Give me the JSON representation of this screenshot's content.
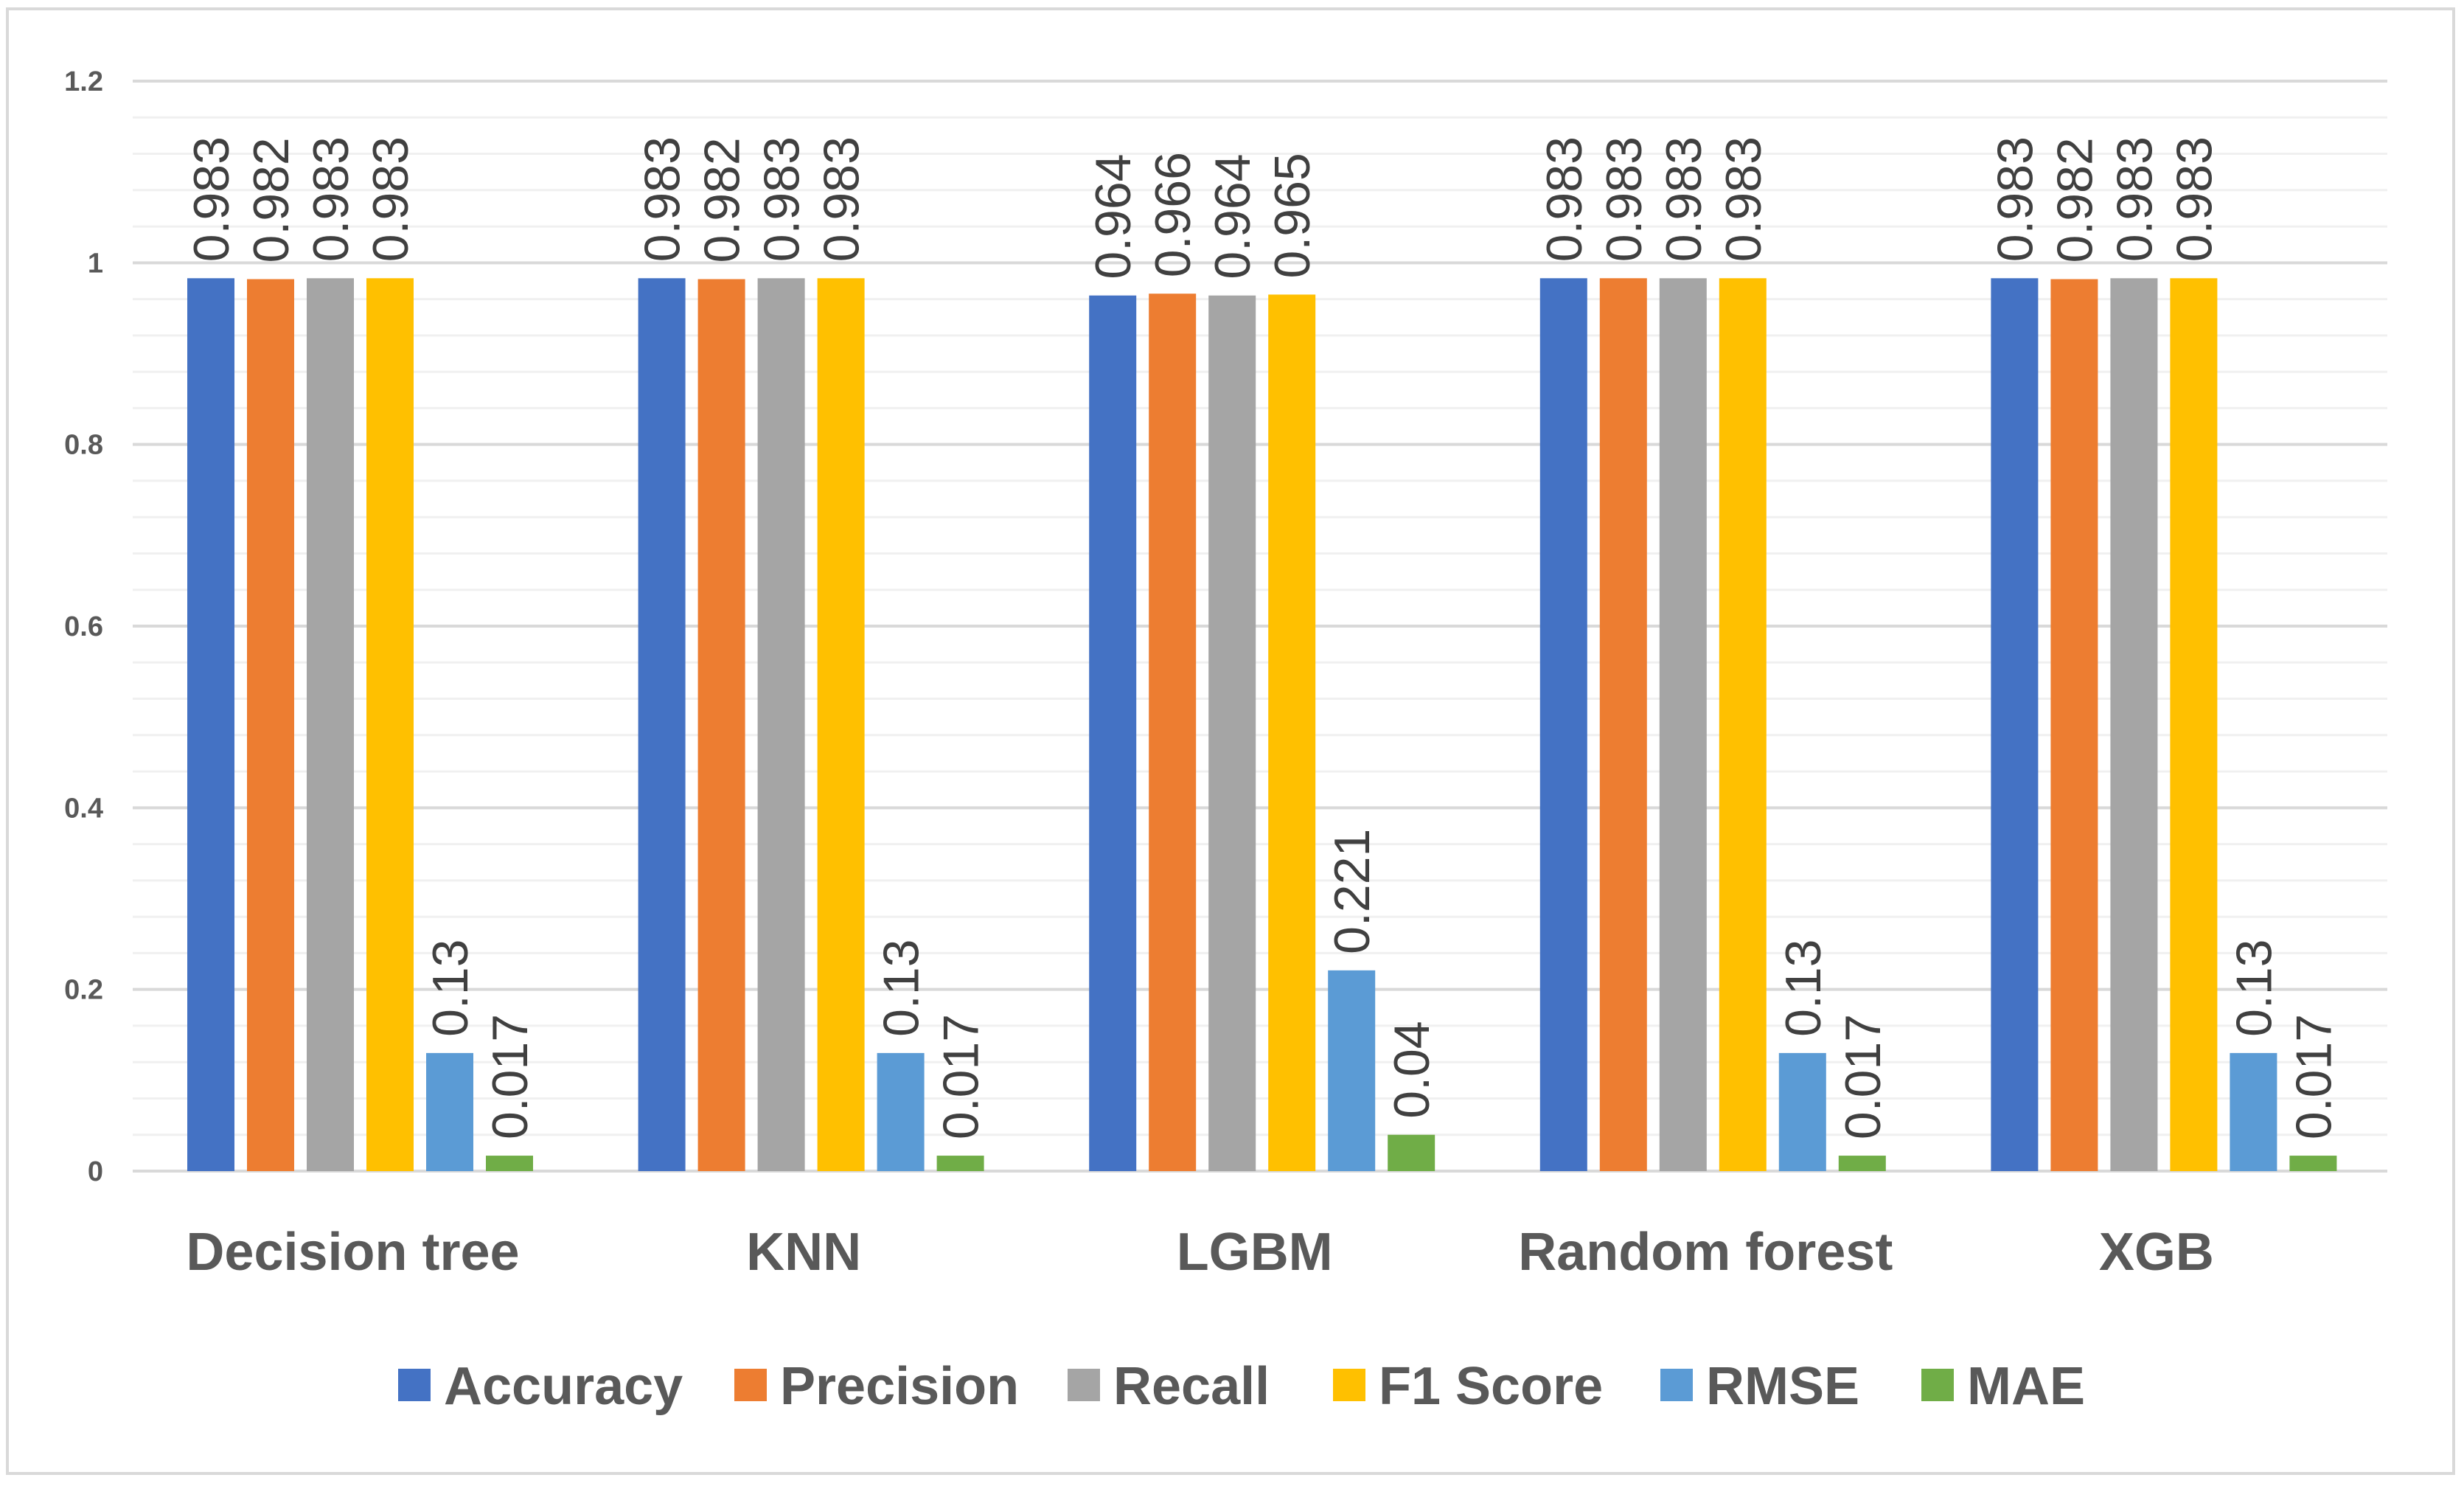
{
  "chart_data": {
    "type": "bar",
    "title": "",
    "xlabel": "",
    "ylabel": "",
    "ylim": [
      0,
      1.2
    ],
    "yticks": [
      0,
      0.2,
      0.4,
      0.6,
      0.8,
      1,
      1.2
    ],
    "ytick_labels": [
      "0",
      "0.2",
      "0.4",
      "0.6",
      "0.8",
      "1",
      "1.2"
    ],
    "grid": true,
    "legend_position": "bottom",
    "categories": [
      "Decision tree",
      "KNN",
      "LGBM",
      "Random forest",
      "XGB"
    ],
    "series": [
      {
        "name": "Accuracy",
        "color": "#4472c4",
        "values": [
          0.983,
          0.983,
          0.964,
          0.983,
          0.983
        ],
        "labels": [
          "0.983",
          "0.983",
          "0.964",
          "0.983",
          "0.983"
        ]
      },
      {
        "name": "Precision",
        "color": "#ed7d31",
        "values": [
          0.982,
          0.982,
          0.966,
          0.983,
          0.982
        ],
        "labels": [
          "0.982",
          "0.982",
          "0.966",
          "0.983",
          "0.982"
        ]
      },
      {
        "name": "Recall",
        "color": "#a5a5a5",
        "values": [
          0.983,
          0.983,
          0.964,
          0.983,
          0.983
        ],
        "labels": [
          "0.983",
          "0.983",
          "0.964",
          "0.983",
          "0.983"
        ]
      },
      {
        "name": "F1 Score",
        "color": "#ffc000",
        "values": [
          0.983,
          0.983,
          0.965,
          0.983,
          0.983
        ],
        "labels": [
          "0.983",
          "0.983",
          "0.965",
          "0.983",
          "0.983"
        ]
      },
      {
        "name": "RMSE",
        "color": "#5b9bd5",
        "values": [
          0.13,
          0.13,
          0.221,
          0.13,
          0.13
        ],
        "labels": [
          "0.13",
          "0.13",
          "0.221",
          "0.13",
          "0.13"
        ]
      },
      {
        "name": "MAE",
        "color": "#70ad47",
        "values": [
          0.017,
          0.017,
          0.04,
          0.017,
          0.017
        ],
        "labels": [
          "0.017",
          "0.017",
          "0.04",
          "0.017",
          "0.017"
        ]
      }
    ]
  }
}
